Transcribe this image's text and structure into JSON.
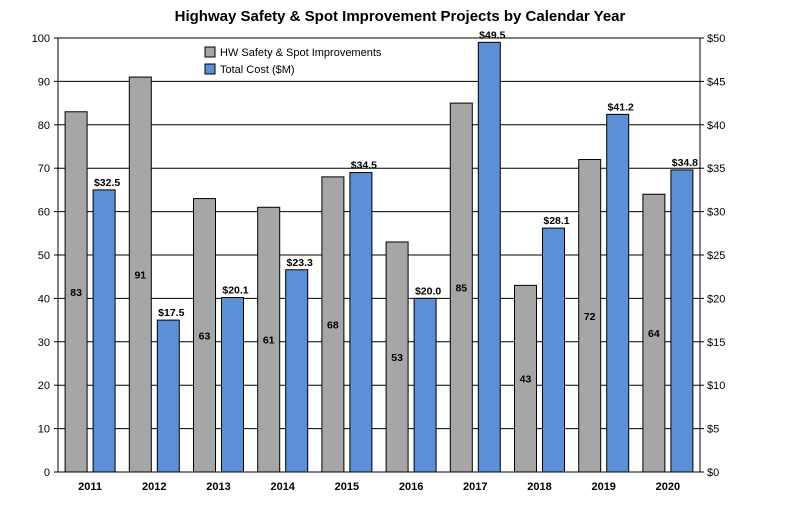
{
  "chart_data": {
    "type": "bar",
    "title": "Highway Safety & Spot Improvement Projects by Calendar Year",
    "categories": [
      "2011",
      "2012",
      "2013",
      "2014",
      "2015",
      "2016",
      "2017",
      "2018",
      "2019",
      "2020"
    ],
    "series": [
      {
        "name": "HW Safety & Spot Improvements",
        "axis": "left",
        "color": "#a6a6a6",
        "values": [
          83,
          91,
          63,
          61,
          68,
          53,
          85,
          43,
          72,
          64
        ],
        "labels": [
          "83",
          "91",
          "63",
          "61",
          "68",
          "53",
          "85",
          "43",
          "72",
          "64"
        ]
      },
      {
        "name": "Total Cost ($M)",
        "axis": "right",
        "color": "#5b8fd6",
        "values": [
          32.5,
          17.5,
          20.1,
          23.3,
          34.5,
          20.0,
          49.5,
          28.1,
          41.2,
          34.8
        ],
        "labels": [
          "$32.5",
          "$17.5",
          "$20.1",
          "$23.3",
          "$34.5",
          "$20.0",
          "$49.5",
          "$28.1",
          "$41.2",
          "$34.8"
        ]
      }
    ],
    "y_left": {
      "ylim": [
        0,
        100
      ],
      "ticks": [
        "0",
        "10",
        "20",
        "30",
        "40",
        "50",
        "60",
        "70",
        "80",
        "90",
        "100"
      ]
    },
    "y_right": {
      "ylim": [
        0,
        50
      ],
      "ticks": [
        "$0",
        "$5",
        "$10",
        "$15",
        "$20",
        "$25",
        "$30",
        "$35",
        "$40",
        "$45",
        "$50"
      ]
    },
    "grid": true,
    "legend_position": "top-left"
  }
}
